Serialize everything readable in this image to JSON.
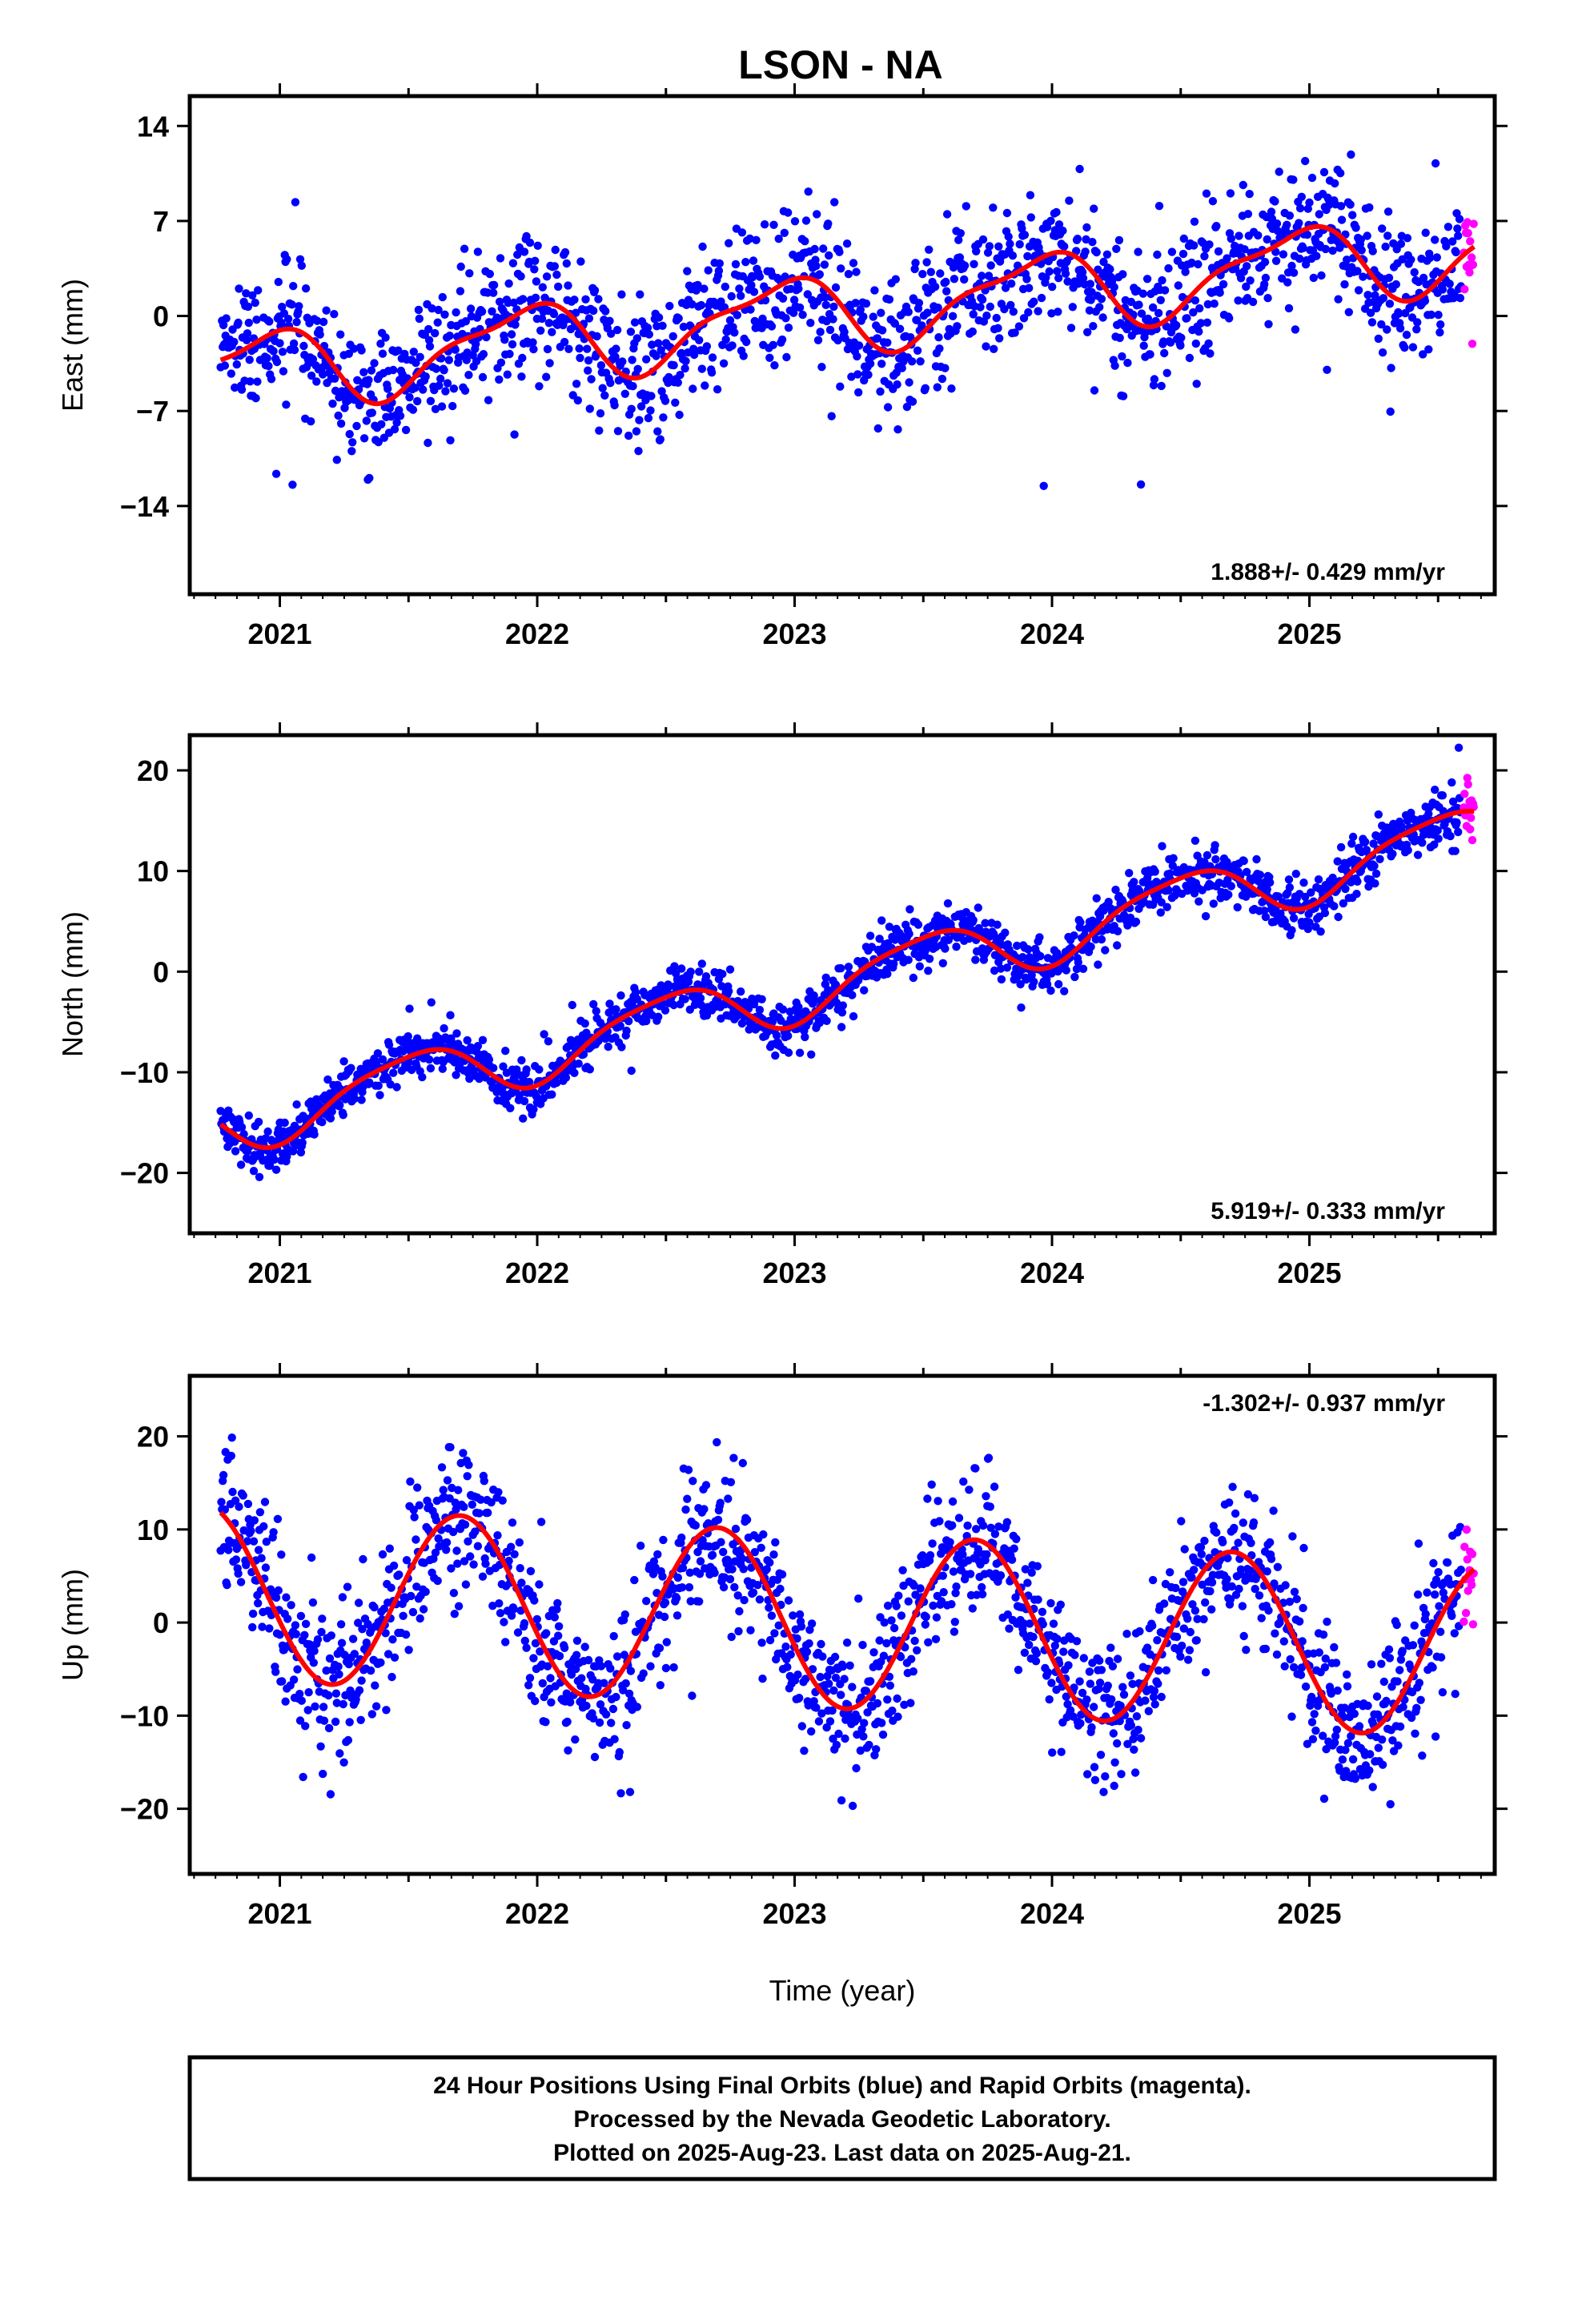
{
  "colors": {
    "final_orbits": "#0000ff",
    "rapid_orbits": "#ff00ff",
    "model_fit": "#ff0000",
    "axes": "#000000"
  },
  "chart_data": {
    "type": "scatter",
    "title": "LSON - NA",
    "xlabel": "Time (year)",
    "xlim": [
      2020.65,
      2025.72
    ],
    "xticks": [
      2021,
      2022,
      2023,
      2024,
      2025
    ],
    "xtick_labels": [
      "2021",
      "2022",
      "2023",
      "2024",
      "2025"
    ],
    "x_minor_tick_step": 0.5,
    "x_start": 2020.77,
    "final_end": 2025.59,
    "rapid_start": 2025.6,
    "x_end": 2025.64,
    "grid": false,
    "panels": [
      {
        "name": "east",
        "ylabel": "East (mm)",
        "ylim": [
          -20.5,
          16.2
        ],
        "yticks": [
          14,
          7,
          0,
          -7,
          -14
        ],
        "ytick_labels": [
          "14",
          "7",
          "0",
          "−7",
          "−14"
        ],
        "rate": "1.888+/- 0.429 mm/yr",
        "rate_position": "bottom-right",
        "trend": {
          "slope_mm_per_yr": 1.888,
          "value_at_2023": 0.0
        },
        "annual": {
          "amplitude_mm": 2.7,
          "peak_year_fraction": 0.93
        },
        "semiannual": {
          "amplitude_mm": 0.9,
          "peak_year_fraction": 0.1
        },
        "final_scatter_mm": 2.4,
        "rapid_scatter_mm": 2.6
      },
      {
        "name": "north",
        "ylabel": "North (mm)",
        "ylim": [
          -26,
          23.5
        ],
        "yticks": [
          20,
          10,
          0,
          -10,
          -20
        ],
        "ytick_labels": [
          "20",
          "10",
          "0",
          "−10",
          "−20"
        ],
        "rate": "5.919+/- 0.333 mm/yr",
        "rate_position": "bottom-right",
        "trend": {
          "slope_mm_per_yr": 5.919,
          "value_at_2023": -2.0
        },
        "annual": {
          "amplitude_mm": 2.9,
          "peak_year_fraction": 0.5
        },
        "semiannual": {
          "amplitude_mm": 0.6,
          "peak_year_fraction": 0.2
        },
        "final_scatter_mm": 1.3,
        "rapid_scatter_mm": 2.4
      },
      {
        "name": "up",
        "ylabel": "Up (mm)",
        "ylim": [
          -27,
          26.5
        ],
        "yticks": [
          20,
          10,
          0,
          -10,
          -20
        ],
        "ytick_labels": [
          "20",
          "10",
          "0",
          "−10",
          "−20"
        ],
        "rate": "-1.302+/- 0.937 mm/yr",
        "rate_position": "top-right",
        "trend": {
          "slope_mm_per_yr": -1.302,
          "value_at_2023": 0.4
        },
        "annual": {
          "amplitude_mm": 9.4,
          "peak_year_fraction": 0.7
        },
        "semiannual": {
          "amplitude_mm": 0.0,
          "peak_year_fraction": 0.0
        },
        "final_scatter_mm": 3.9,
        "rapid_scatter_mm": 5.0
      }
    ],
    "series": [
      {
        "name": "24 Hour Positions Using Final Orbits (blue)",
        "color": "#0000ff",
        "marker": "dot"
      },
      {
        "name": "Rapid Orbits (magenta)",
        "color": "#ff00ff",
        "marker": "dot"
      },
      {
        "color": "#ff0000",
        "marker": "line"
      }
    ]
  },
  "caption": {
    "lines": [
      "24 Hour Positions Using Final Orbits (blue) and Rapid Orbits (magenta).",
      "Processed by the Nevada Geodetic Laboratory.",
      "Plotted on 2025-Aug-23. Last data on 2025-Aug-21."
    ]
  }
}
